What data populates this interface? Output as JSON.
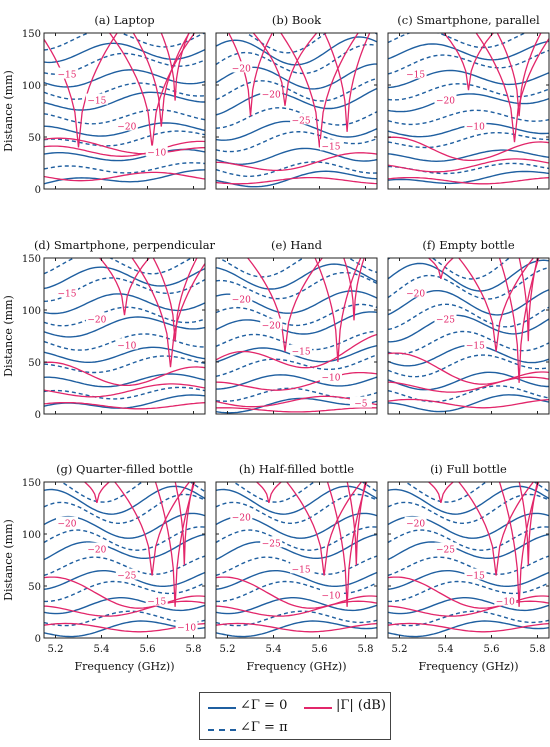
{
  "figure": {
    "colors": {
      "phase": "#1f5fa0",
      "mag": "#e2266a",
      "frame": "#222222"
    },
    "xlabel": "Frequency (GHz))",
    "ylabel": "Distance (mm)",
    "xticks": [
      "5.2",
      "5.4",
      "5.6",
      "5.8"
    ],
    "yticks": [
      "0",
      "50",
      "100",
      "150"
    ]
  },
  "legend": {
    "phase0": "∠Γ = 0",
    "phasePi": "∠Γ = π",
    "mag": "|Γ| (dB)"
  },
  "chart_data": [
    {
      "type": "contour",
      "title": "(a) Laptop",
      "xlim": [
        5.15,
        5.85
      ],
      "ylim": [
        0,
        150
      ],
      "contour_labels": [
        "−15",
        "−15",
        "−20",
        "−10"
      ]
    },
    {
      "type": "contour",
      "title": "(b) Book",
      "xlim": [
        5.15,
        5.85
      ],
      "ylim": [
        0,
        150
      ],
      "contour_labels": [
        "−20",
        "−20",
        "−25",
        "−15"
      ]
    },
    {
      "type": "contour",
      "title": "(c) Smartphone, parallel",
      "xlim": [
        5.15,
        5.85
      ],
      "ylim": [
        0,
        150
      ],
      "contour_labels": [
        "−15",
        "−20",
        "−10"
      ]
    },
    {
      "type": "contour",
      "title": "(d) Smartphone, perpendicular",
      "xlim": [
        5.15,
        5.85
      ],
      "ylim": [
        0,
        150
      ],
      "contour_labels": [
        "−15",
        "−20",
        "−10"
      ]
    },
    {
      "type": "contour",
      "title": "(e) Hand",
      "xlim": [
        5.15,
        5.85
      ],
      "ylim": [
        0,
        150
      ],
      "contour_labels": [
        "−20",
        "−20",
        "−15",
        "−10",
        "−5"
      ]
    },
    {
      "type": "contour",
      "title": "(f) Empty bottle",
      "xlim": [
        5.15,
        5.85
      ],
      "ylim": [
        0,
        150
      ],
      "contour_labels": [
        "−20",
        "−25",
        "−15"
      ]
    },
    {
      "type": "contour",
      "title": "(g) Quarter-filled bottle",
      "xlim": [
        5.15,
        5.85
      ],
      "ylim": [
        0,
        150
      ],
      "contour_labels": [
        "−20",
        "−20",
        "−25",
        "−15",
        "−10"
      ]
    },
    {
      "type": "contour",
      "title": "(h) Half-filled bottle",
      "xlim": [
        5.15,
        5.85
      ],
      "ylim": [
        0,
        150
      ],
      "contour_labels": [
        "−20",
        "−25",
        "−15",
        "−10"
      ]
    },
    {
      "type": "contour",
      "title": "(i) Full bottle",
      "xlim": [
        5.15,
        5.85
      ],
      "ylim": [
        0,
        150
      ],
      "contour_labels": [
        "−20",
        "−25",
        "−15",
        "−10"
      ]
    }
  ]
}
